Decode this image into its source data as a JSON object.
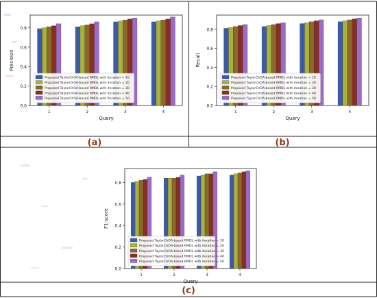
{
  "series_colors": [
    "#3b5aa8",
    "#a9b23a",
    "#8a6a2a",
    "#8b2e22",
    "#9a6cc8"
  ],
  "chart_data": [
    {
      "type": "bar",
      "panel_label": "(a)",
      "xlabel": "Query",
      "ylabel": "Precision",
      "categories": [
        "1",
        "2",
        "3",
        "4"
      ],
      "yticks": [
        "0.0",
        "0.2",
        "0.4",
        "0.6",
        "0.8"
      ],
      "ylim": [
        0,
        0.93
      ],
      "grid": false,
      "legend_position": "lower-left",
      "series": [
        {
          "name": "Proposed TaylorChOA-based RMDL with iteration = 10",
          "values": [
            0.79,
            0.81,
            0.86,
            0.86
          ]
        },
        {
          "name": "Proposed TaylorChOA-based RMDL with iteration = 20",
          "values": [
            0.8,
            0.82,
            0.87,
            0.87
          ]
        },
        {
          "name": "Proposed TaylorChOA-based RMDL with iteration = 30",
          "values": [
            0.81,
            0.83,
            0.88,
            0.88
          ]
        },
        {
          "name": "Proposed TaylorChOA-based RMDL with iteration = 40",
          "values": [
            0.82,
            0.84,
            0.89,
            0.89
          ]
        },
        {
          "name": "Proposed TaylorChOA-based RMDL with iteration = 50",
          "values": [
            0.84,
            0.86,
            0.9,
            0.91
          ]
        }
      ]
    },
    {
      "type": "bar",
      "panel_label": "(b)",
      "xlabel": "Query",
      "ylabel": "Recall",
      "categories": [
        "1",
        "2",
        "3",
        "4"
      ],
      "yticks": [
        "0.0",
        "0.2",
        "0.4",
        "0.6",
        "0.8"
      ],
      "ylim": [
        0,
        0.95
      ],
      "grid": false,
      "legend_position": "lower-left",
      "series": [
        {
          "name": "Proposed TaylorChOA-based RMDL with iteration = 10",
          "values": [
            0.81,
            0.83,
            0.86,
            0.88
          ]
        },
        {
          "name": "Proposed TaylorChOA-based RMDL with iteration = 20",
          "values": [
            0.82,
            0.84,
            0.87,
            0.89
          ]
        },
        {
          "name": "Proposed TaylorChOA-based RMDL with iteration = 30",
          "values": [
            0.83,
            0.85,
            0.88,
            0.9
          ]
        },
        {
          "name": "Proposed TaylorChOA-based RMDL with iteration = 40",
          "values": [
            0.84,
            0.86,
            0.89,
            0.91
          ]
        },
        {
          "name": "Proposed TaylorChOA-based RMDL with iteration = 50",
          "values": [
            0.85,
            0.87,
            0.9,
            0.92
          ]
        }
      ]
    },
    {
      "type": "bar",
      "panel_label": "(c)",
      "xlabel": "Query",
      "ylabel": "F1-score",
      "categories": [
        "1",
        "2",
        "3",
        "4"
      ],
      "yticks": [
        "0.0",
        "0.2",
        "0.4",
        "0.6",
        "0.8"
      ],
      "ylim": [
        0,
        0.93
      ],
      "grid": false,
      "legend_position": "lower-left",
      "series": [
        {
          "name": "Proposed TaylorChOA-based RMDL with iteration = 10",
          "values": [
            0.8,
            0.84,
            0.86,
            0.87
          ]
        },
        {
          "name": "Proposed TaylorChOA-based RMDL with iteration = 20",
          "values": [
            0.81,
            0.84,
            0.87,
            0.88
          ]
        },
        {
          "name": "Proposed TaylorChOA-based RMDL with iteration = 30",
          "values": [
            0.82,
            0.84,
            0.88,
            0.89
          ]
        },
        {
          "name": "Proposed TaylorChOA-based RMDL with iteration = 40",
          "values": [
            0.83,
            0.85,
            0.88,
            0.9
          ]
        },
        {
          "name": "Proposed TaylorChOA-based RMDL with iteration = 50",
          "values": [
            0.85,
            0.87,
            0.9,
            0.91
          ]
        }
      ]
    }
  ]
}
